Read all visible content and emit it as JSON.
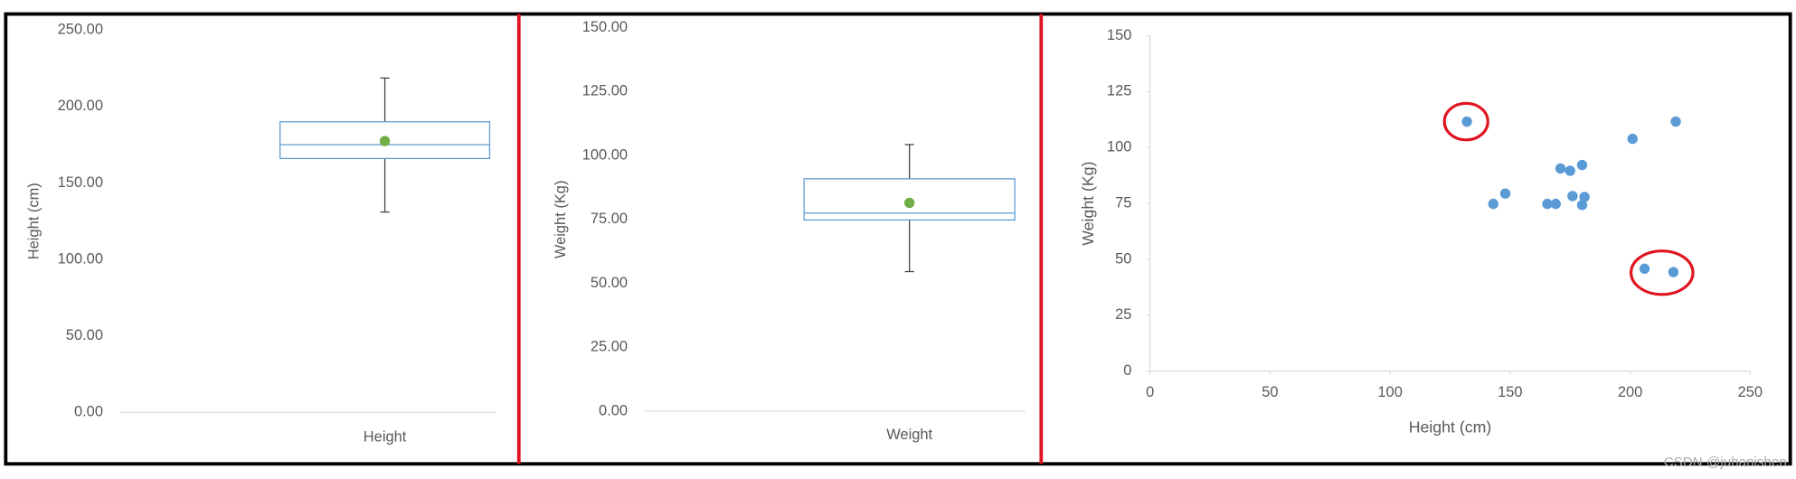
{
  "chart_data": [
    {
      "type": "box",
      "y_label": "Height (cm)",
      "categories": [
        "Height"
      ],
      "min": [
        131
      ],
      "q1": [
        166
      ],
      "median": [
        175
      ],
      "q3": [
        190
      ],
      "max": [
        218.6
      ],
      "mean": [
        177.4
      ],
      "color": "#5b9bd5",
      "mean_color": "#70ad47",
      "ylim": [
        0,
        250
      ],
      "yticks": [
        {
          "value": 0,
          "label": "0.00"
        },
        {
          "value": 50,
          "label": "50.00"
        },
        {
          "value": 100,
          "label": "100.00"
        },
        {
          "value": 150,
          "label": "150.00"
        },
        {
          "value": 200,
          "label": "200.00"
        },
        {
          "value": 250,
          "label": "250.00"
        }
      ]
    },
    {
      "type": "box",
      "y_label": "Weight (Kg)",
      "categories": [
        "Weight"
      ],
      "min": [
        54.6
      ],
      "q1": [
        74.8
      ],
      "median": [
        77.5
      ],
      "q3": [
        90.9
      ],
      "max": [
        104.3
      ],
      "mean": [
        81.5
      ],
      "color": "#5b9bd5",
      "mean_color": "#70ad47",
      "ylim": [
        0,
        150
      ],
      "yticks": [
        {
          "value": 0,
          "label": "0.00"
        },
        {
          "value": 25,
          "label": "25.00"
        },
        {
          "value": 50,
          "label": "50.00"
        },
        {
          "value": 75,
          "label": "75.00"
        },
        {
          "value": 100,
          "label": "100.00"
        },
        {
          "value": 125,
          "label": "125.00"
        },
        {
          "value": 150,
          "label": "150.00"
        }
      ]
    },
    {
      "type": "scatter",
      "x_label": "Height (cm)",
      "y_label": "Weight (Kg)",
      "color": "#5b9bd5",
      "x": [
        132,
        143,
        148,
        165.5,
        169,
        171,
        175,
        176,
        180,
        180,
        181,
        201,
        206,
        218,
        219
      ],
      "values": [
        111.6,
        74.8,
        79.4,
        74.8,
        74.8,
        90.6,
        89.6,
        78.3,
        92.2,
        74.3,
        77.9,
        103.9,
        45.8,
        44.3,
        111.6
      ],
      "xlim": [
        0,
        250
      ],
      "xticks": [
        0,
        50,
        100,
        150,
        200,
        250
      ],
      "ylim": [
        0,
        150
      ],
      "yticks": [
        0,
        25,
        50,
        75,
        100,
        125,
        150
      ]
    }
  ],
  "watermark": "CSDN @juhanishen"
}
